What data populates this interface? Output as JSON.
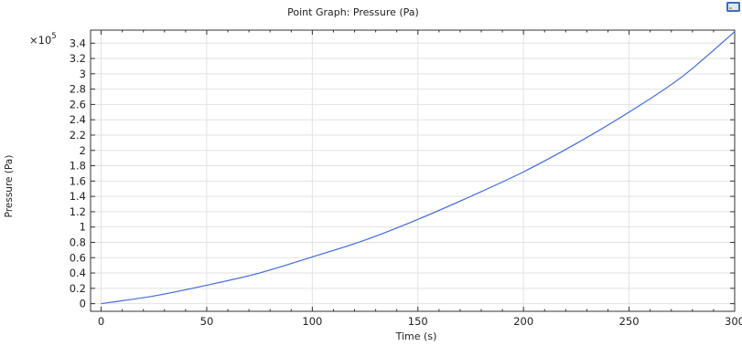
{
  "chart_data": {
    "type": "line",
    "title": "Point Graph: Pressure (Pa)",
    "xlabel": "Time (s)",
    "ylabel": "Pressure (Pa)",
    "y_multiplier": "×10",
    "y_multiplier_exp": "5",
    "xlim": [
      -5,
      300
    ],
    "ylim": [
      -0.1,
      3.57
    ],
    "x_ticks": [
      0,
      50,
      100,
      150,
      200,
      250,
      300
    ],
    "x_tick_labels": [
      "0",
      "50",
      "100",
      "150",
      "200",
      "250",
      "300"
    ],
    "y_ticks": [
      0,
      0.2,
      0.4,
      0.6,
      0.8,
      1,
      1.2,
      1.4,
      1.6,
      1.8,
      2,
      2.2,
      2.4,
      2.6,
      2.8,
      3,
      3.2,
      3.4
    ],
    "y_tick_labels": [
      "0",
      "0.2",
      "0.4",
      "0.6",
      "0.8",
      "1",
      "1.2",
      "1.4",
      "1.6",
      "1.8",
      "2",
      "2.2",
      "2.4",
      "2.6",
      "2.8",
      "3",
      "3.2",
      "3.4"
    ],
    "grid": true,
    "series": [
      {
        "color": "#4169e1",
        "x": [
          0,
          25,
          50,
          75,
          100,
          125,
          150,
          175,
          200,
          225,
          250,
          275,
          300
        ],
        "y": [
          0,
          0.1,
          0.24,
          0.4,
          0.61,
          0.83,
          1.1,
          1.4,
          1.72,
          2.09,
          2.5,
          2.96,
          3.55
        ]
      }
    ]
  },
  "toolbar": {
    "corner_icon": "plot-window-icon",
    "corner_icon_color": "#3a6fc4"
  }
}
